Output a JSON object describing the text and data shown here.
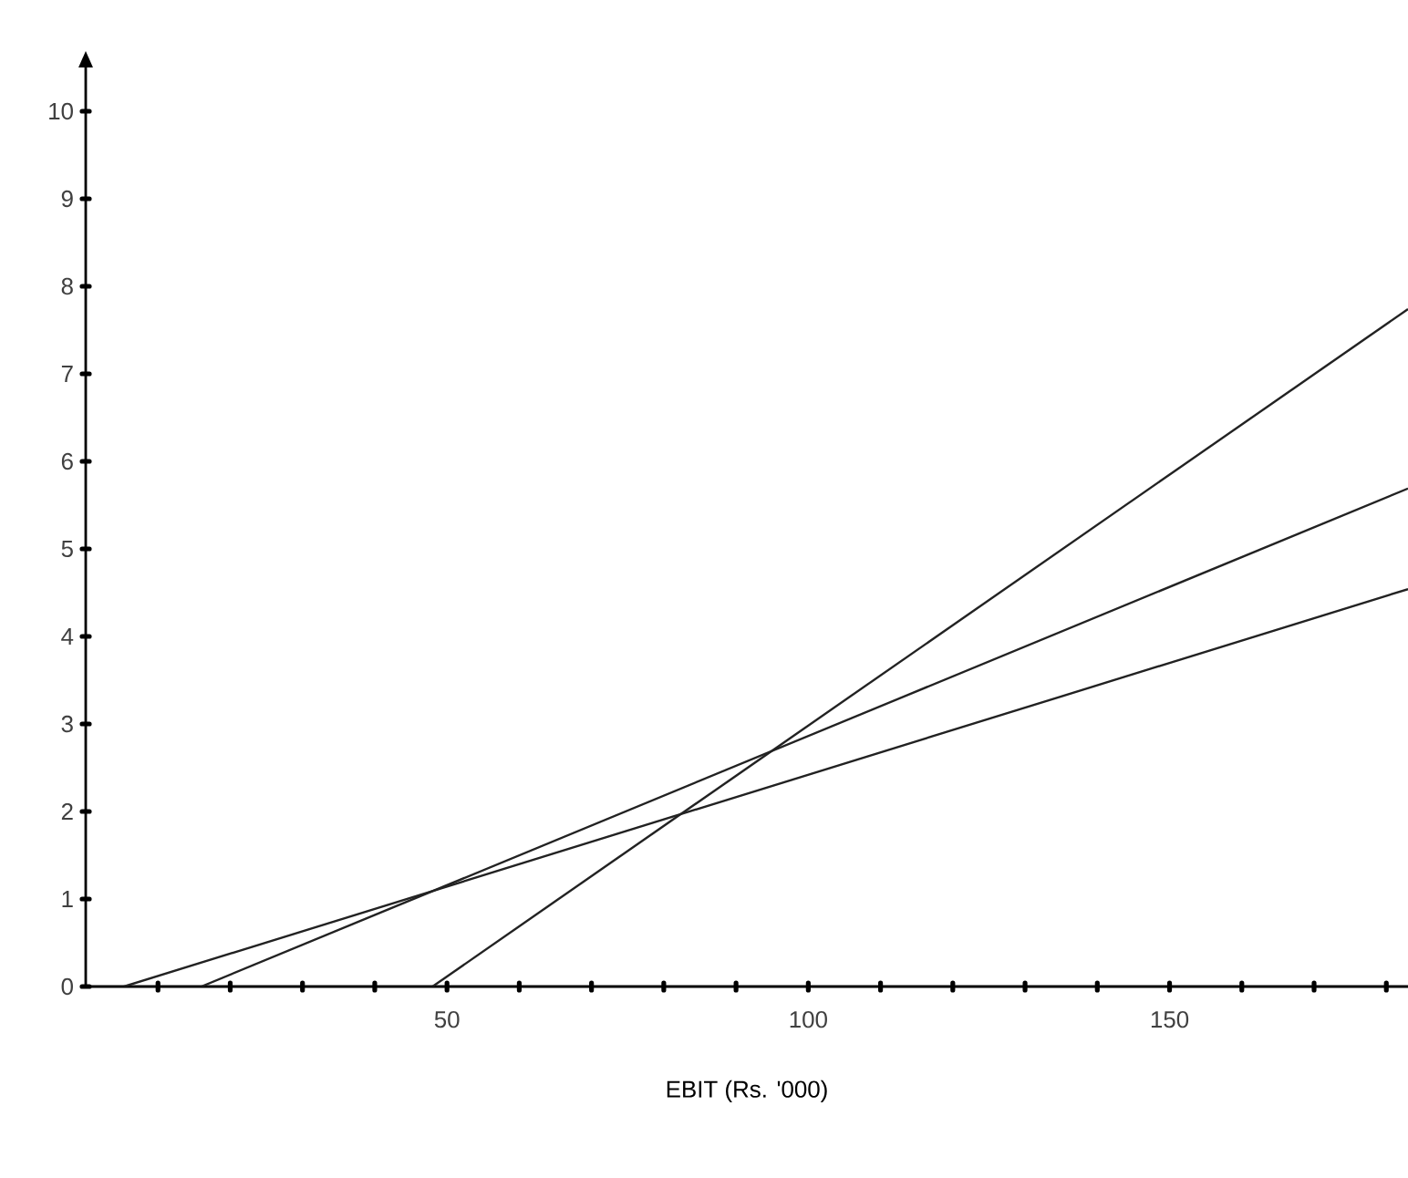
{
  "chart_data": {
    "type": "line",
    "xlabel": "EBIT (Rs. '000)",
    "xlim": [
      0,
      183
    ],
    "ylim": [
      0,
      10.5
    ],
    "xticks": [
      {
        "value": 10,
        "label": null
      },
      {
        "value": 20,
        "label": null
      },
      {
        "value": 30,
        "label": null
      },
      {
        "value": 40,
        "label": null
      },
      50,
      {
        "value": 60,
        "label": null
      },
      {
        "value": 70,
        "label": null
      },
      {
        "value": 80,
        "label": null
      },
      {
        "value": 90,
        "label": null
      },
      100,
      {
        "value": 110,
        "label": null
      },
      {
        "value": 120,
        "label": null
      },
      {
        "value": 130,
        "label": null
      },
      {
        "value": 140,
        "label": null
      },
      150,
      {
        "value": 160,
        "label": null
      },
      {
        "value": 170,
        "label": null
      },
      {
        "value": 180,
        "label": null
      }
    ],
    "yticks": [
      0,
      1,
      2,
      3,
      4,
      5,
      6,
      7,
      8,
      9,
      10
    ],
    "series": [
      {
        "color": "#222222",
        "x": [
          48,
          183
        ],
        "values": [
          0,
          7.74
        ]
      },
      {
        "color": "#222222",
        "x": [
          16,
          183
        ],
        "values": [
          0,
          5.69
        ]
      },
      {
        "color": "#222222",
        "x": [
          5.3,
          183
        ],
        "values": [
          0,
          4.54
        ]
      }
    ]
  }
}
